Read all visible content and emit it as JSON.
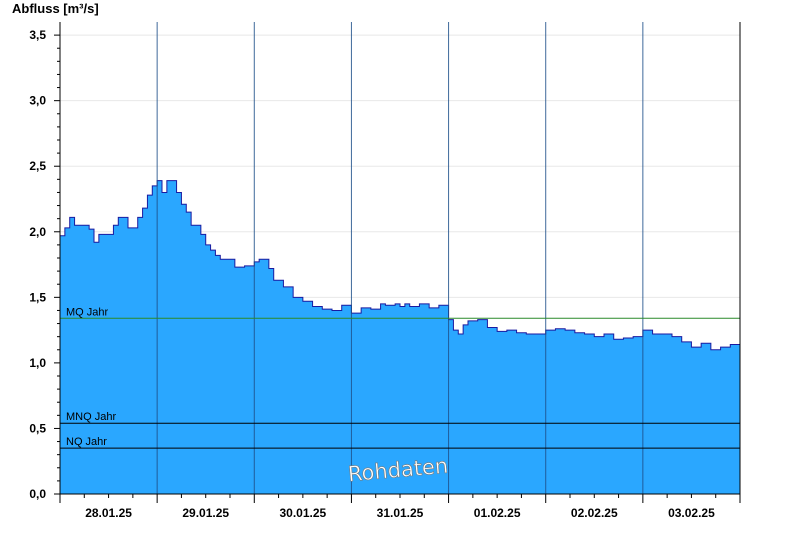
{
  "chart_data": {
    "type": "area",
    "title": "",
    "ylabel": "Abfluss [m³/s]",
    "xlabel": "",
    "ylim": [
      0,
      3.6
    ],
    "yticks": [
      "0,0",
      "0,5",
      "1,0",
      "1,5",
      "2,0",
      "2,5",
      "3,0",
      "3,5"
    ],
    "ytick_values": [
      0,
      0.5,
      1.0,
      1.5,
      2.0,
      2.5,
      3.0,
      3.5
    ],
    "xlim_days": [
      0,
      7
    ],
    "xtick_labels": [
      "28.01.25",
      "29.01.25",
      "30.01.25",
      "31.01.25",
      "01.02.25",
      "02.02.25",
      "03.02.25"
    ],
    "grid": true,
    "fill_color": "#2aa7ff",
    "edge_color": "#1a1aa0",
    "series": [
      {
        "x": [
          0,
          0.05,
          0.1,
          0.15,
          0.2,
          0.3,
          0.35,
          0.4,
          0.45,
          0.5,
          0.55,
          0.6,
          0.7,
          0.8,
          0.85,
          0.9,
          0.95,
          1.0,
          1.05,
          1.1,
          1.15,
          1.2,
          1.25,
          1.3,
          1.35,
          1.4,
          1.45,
          1.5,
          1.55,
          1.6,
          1.65,
          1.7,
          1.8,
          1.9,
          2.0,
          2.05,
          2.15,
          2.2,
          2.3,
          2.4,
          2.5,
          2.6,
          2.7,
          2.8,
          2.9,
          3.0,
          3.1,
          3.2,
          3.3,
          3.35,
          3.45,
          3.5,
          3.55,
          3.6,
          3.7,
          3.8,
          3.9,
          4.0,
          4.05,
          4.1,
          4.15,
          4.2,
          4.3,
          4.4,
          4.5,
          4.6,
          4.7,
          4.8,
          4.9,
          5.0,
          5.1,
          5.2,
          5.3,
          5.4,
          5.5,
          5.6,
          5.7,
          5.8,
          5.9,
          6.0,
          6.1,
          6.2,
          6.3,
          6.4,
          6.5,
          6.6,
          6.7,
          6.8,
          6.9,
          7.0
        ],
        "values": [
          1.97,
          2.03,
          2.11,
          2.05,
          2.05,
          2.02,
          1.92,
          1.98,
          1.98,
          1.98,
          2.05,
          2.11,
          2.03,
          2.11,
          2.18,
          2.28,
          2.35,
          2.39,
          2.3,
          2.39,
          2.39,
          2.3,
          2.21,
          2.15,
          2.05,
          2.05,
          1.98,
          1.9,
          1.86,
          1.82,
          1.79,
          1.79,
          1.73,
          1.74,
          1.77,
          1.79,
          1.72,
          1.63,
          1.58,
          1.5,
          1.47,
          1.43,
          1.41,
          1.4,
          1.44,
          1.38,
          1.42,
          1.41,
          1.45,
          1.44,
          1.45,
          1.43,
          1.45,
          1.43,
          1.45,
          1.42,
          1.44,
          1.33,
          1.25,
          1.22,
          1.29,
          1.32,
          1.33,
          1.27,
          1.24,
          1.25,
          1.23,
          1.22,
          1.22,
          1.25,
          1.26,
          1.25,
          1.23,
          1.22,
          1.2,
          1.22,
          1.18,
          1.19,
          1.2,
          1.25,
          1.22,
          1.22,
          1.2,
          1.16,
          1.12,
          1.15,
          1.1,
          1.12,
          1.14,
          1.13
        ]
      }
    ],
    "reference_lines": [
      {
        "label": "MQ Jahr",
        "value": 1.34,
        "color": "#2a8a2a"
      },
      {
        "label": "MNQ Jahr",
        "value": 0.54,
        "color": "#000000"
      },
      {
        "label": "NQ Jahr",
        "value": 0.35,
        "color": "#000000"
      }
    ],
    "watermark": "Rohdaten"
  }
}
